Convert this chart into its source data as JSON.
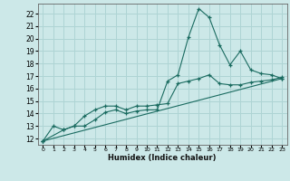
{
  "title": "",
  "xlabel": "Humidex (Indice chaleur)",
  "bg_color": "#cce8e8",
  "line_color": "#1a6b60",
  "grid_color": "#aed4d4",
  "xlim": [
    -0.5,
    23.5
  ],
  "ylim": [
    11.5,
    22.8
  ],
  "xticks": [
    0,
    1,
    2,
    3,
    4,
    5,
    6,
    7,
    8,
    9,
    10,
    11,
    12,
    13,
    14,
    15,
    16,
    17,
    18,
    19,
    20,
    21,
    22,
    23
  ],
  "yticks": [
    12,
    13,
    14,
    15,
    16,
    17,
    18,
    19,
    20,
    21,
    22
  ],
  "line1_x": [
    0,
    1,
    2,
    3,
    4,
    5,
    6,
    7,
    8,
    9,
    10,
    11,
    12,
    13,
    14,
    15,
    16,
    17,
    18,
    19,
    20,
    21,
    22,
    23
  ],
  "line1_y": [
    11.8,
    13.0,
    12.7,
    13.0,
    13.0,
    13.5,
    14.1,
    14.3,
    14.0,
    14.2,
    14.3,
    14.3,
    16.6,
    17.1,
    20.1,
    22.4,
    21.7,
    19.5,
    17.9,
    19.0,
    17.5,
    17.2,
    17.1,
    16.8
  ],
  "line2_x": [
    0,
    2,
    3,
    4,
    5,
    6,
    7,
    8,
    9,
    10,
    11,
    12,
    13,
    14,
    15,
    16,
    17,
    18,
    19,
    20,
    21,
    22,
    23
  ],
  "line2_y": [
    11.8,
    12.7,
    13.0,
    13.8,
    14.3,
    14.6,
    14.6,
    14.3,
    14.6,
    14.6,
    14.7,
    14.8,
    16.4,
    16.6,
    16.8,
    17.1,
    16.4,
    16.3,
    16.3,
    16.5,
    16.6,
    16.7,
    16.9
  ],
  "line3_x": [
    0,
    23
  ],
  "line3_y": [
    11.8,
    16.8
  ]
}
